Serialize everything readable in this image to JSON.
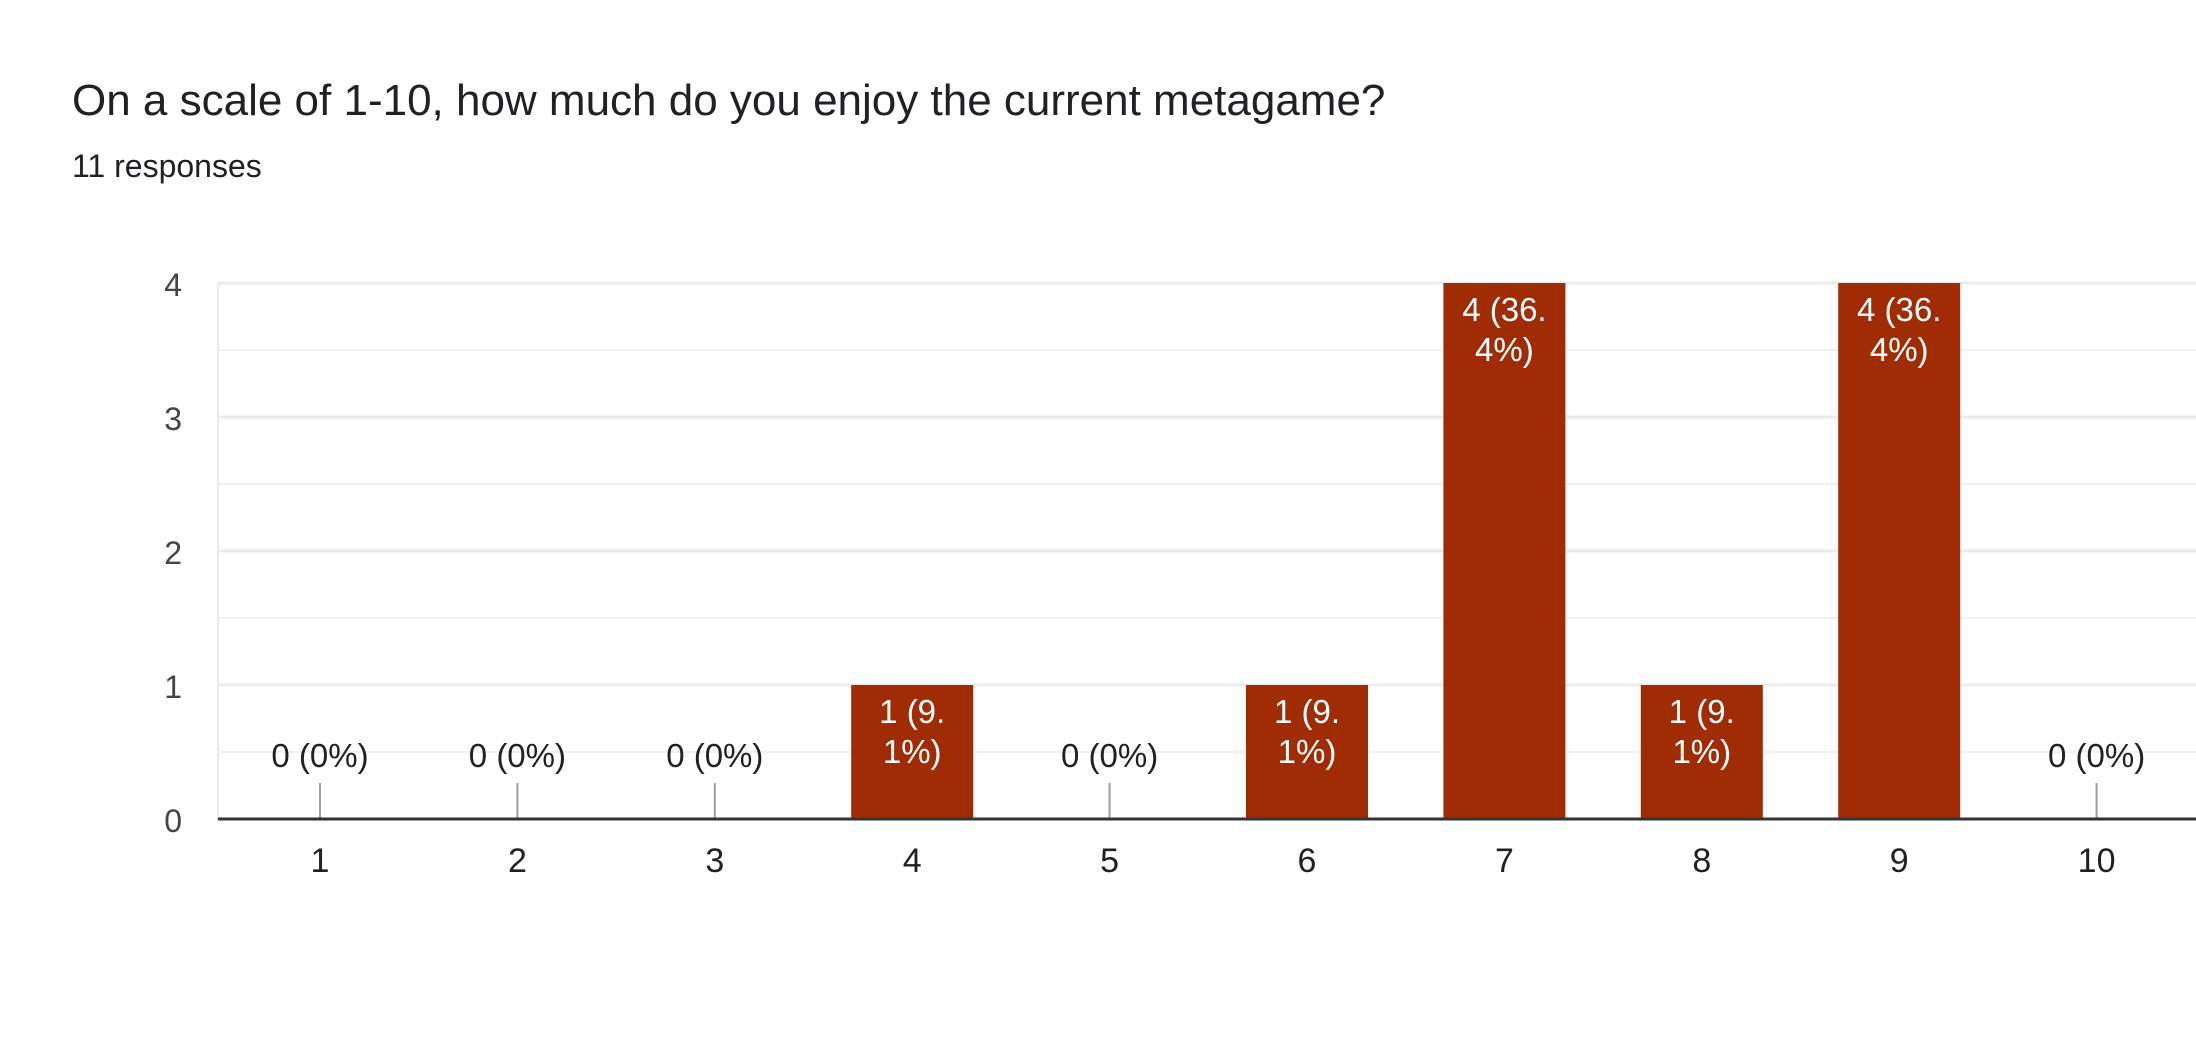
{
  "header": {
    "title": "On a scale of 1-10, how much do you enjoy the current metagame?",
    "subtitle": "11 responses"
  },
  "colors": {
    "bar": "#a02c06",
    "grid": "#ebebeb",
    "axis": "#333333",
    "zero_stub": "#9e9e9e",
    "label_inside": "#ffffff",
    "label_outside": "#212121",
    "tick_text": "#444444"
  },
  "chart_data": {
    "type": "bar",
    "categories": [
      "1",
      "2",
      "3",
      "4",
      "5",
      "6",
      "7",
      "8",
      "9",
      "10"
    ],
    "values": [
      0,
      0,
      0,
      1,
      0,
      1,
      4,
      1,
      4,
      0
    ],
    "data_labels": [
      [
        "0 (0%)"
      ],
      [
        "0 (0%)"
      ],
      [
        "0 (0%)"
      ],
      [
        "1 (9.",
        "1%)"
      ],
      [
        "0 (0%)"
      ],
      [
        "1 (9.",
        "1%)"
      ],
      [
        "4 (36.",
        "4%)"
      ],
      [
        "1 (9.",
        "1%)"
      ],
      [
        "4 (36.",
        "4%)"
      ],
      [
        "0 (0%)"
      ]
    ],
    "yticks": [
      "0",
      "1",
      "2",
      "3",
      "4"
    ],
    "ylim": [
      0,
      4
    ],
    "grid": true,
    "legend": "none"
  }
}
